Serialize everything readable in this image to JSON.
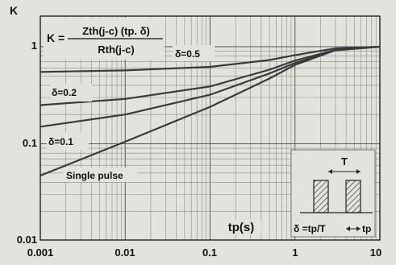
{
  "chart_data": {
    "type": "line",
    "title": "",
    "ylabel": "K",
    "xlabel": "tp(s)",
    "xscale": "log",
    "yscale": "log",
    "xlim": [
      0.001,
      10
    ],
    "ylim": [
      0.01,
      1.5
    ],
    "grid": true,
    "x_ticks": [
      "0.001",
      "0.01",
      "0.1",
      "1",
      "10"
    ],
    "y_ticks": [
      "1",
      "0.1",
      "0.01"
    ],
    "formula": {
      "lhs": "K =",
      "numerator": "Zth(j-c) (tp. δ)",
      "denominator": "Rth(j-c)"
    },
    "series": [
      {
        "name": "δ=0.5",
        "x": [
          0.001,
          0.01,
          0.1,
          0.5,
          1,
          3,
          10
        ],
        "values": [
          0.55,
          0.57,
          0.62,
          0.73,
          0.82,
          0.96,
          1.0
        ]
      },
      {
        "name": "δ=0.2",
        "x": [
          0.001,
          0.01,
          0.1,
          0.5,
          1,
          3,
          10
        ],
        "values": [
          0.25,
          0.29,
          0.39,
          0.58,
          0.72,
          0.93,
          1.0
        ]
      },
      {
        "name": "δ=0.1",
        "x": [
          0.001,
          0.01,
          0.1,
          0.5,
          1,
          3,
          10
        ],
        "values": [
          0.15,
          0.2,
          0.32,
          0.53,
          0.68,
          0.92,
          1.0
        ]
      },
      {
        "name": "Single pulse",
        "x": [
          0.001,
          0.01,
          0.1,
          0.5,
          1,
          3,
          10
        ],
        "values": [
          0.047,
          0.105,
          0.24,
          0.47,
          0.65,
          0.92,
          1.0
        ]
      }
    ],
    "inset": {
      "period_label": "T",
      "duty_label": "δ =tp/T",
      "pulse_label": "tp"
    }
  }
}
